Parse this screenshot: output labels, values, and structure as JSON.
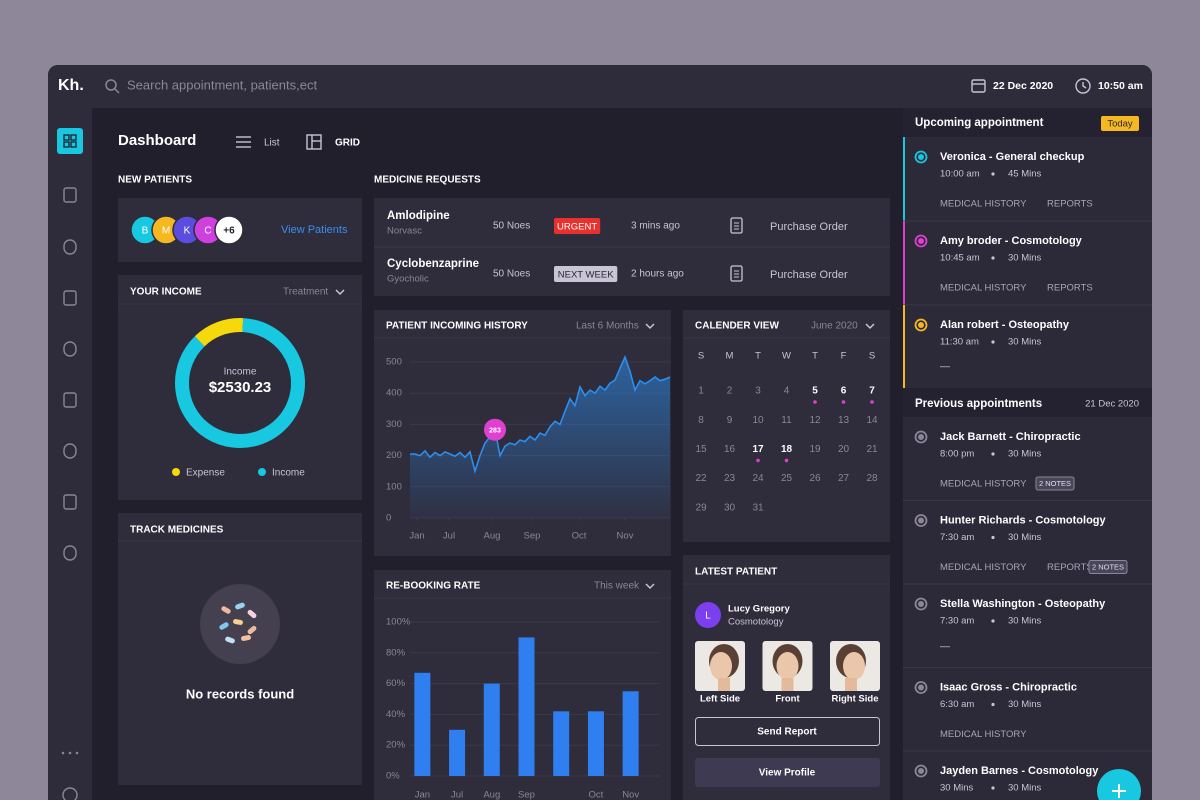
{
  "brand": "Kh.",
  "search_placeholder": "Search appointment, patients,ect",
  "date": "22 Dec 2020",
  "time": "10:50 am",
  "page_title": "Dashboard",
  "view_list": "List",
  "view_grid": "GRID",
  "new_patients": {
    "title": "NEW PATIENTS",
    "avatars": [
      "B",
      "M",
      "K",
      "C",
      "+6"
    ],
    "avatar_colors": [
      "#17c8e0",
      "#f5b820",
      "#5b4de0",
      "#d040e0",
      "#ffffff"
    ],
    "link": "View Patients"
  },
  "income": {
    "title": "YOUR INCOME",
    "filter": "Treatment",
    "center_label": "Income",
    "center_value": "$2530.23"
  },
  "track": {
    "title": "TRACK MEDICINES",
    "empty": "No records found"
  },
  "medicine": {
    "title": "MEDICINE REQUESTS",
    "rows": [
      {
        "name": "Amlodipine",
        "sub": "Norvasc",
        "qty": "50 Noes",
        "tag": "URGENT",
        "tag_color": "#e8302e",
        "time": "3 mins ago",
        "action": "Purchase Order"
      },
      {
        "name": "Cyclobenzaprine",
        "sub": "Gyocholic",
        "qty": "50 Noes",
        "tag": "NEXT WEEK",
        "tag_color": "#c9c4d6",
        "time": "2 hours ago",
        "action": "Purchase Order"
      }
    ]
  },
  "chart_data": [
    {
      "type": "pie",
      "categories": [
        "Expense",
        "Income"
      ],
      "values": [
        13,
        87
      ],
      "colors": [
        "#f5d90a",
        "#17c8e0"
      ]
    },
    {
      "type": "line",
      "title": "PATIENT INCOMING HISTORY",
      "filter": "Last 6 Months",
      "color": "#2a8ff0",
      "grid": true,
      "x": [
        0,
        1,
        2,
        3,
        4,
        5,
        6,
        7,
        8,
        9,
        10,
        11,
        12,
        13,
        14,
        15,
        16,
        17,
        18,
        19,
        20,
        21,
        22,
        23,
        24,
        25,
        26,
        27,
        28,
        29,
        30,
        31,
        32,
        33,
        34,
        35,
        36,
        37,
        38,
        39,
        40,
        41,
        42,
        43,
        44,
        45,
        46,
        47,
        48,
        49,
        50,
        51,
        52
      ],
      "values": [
        205,
        205,
        200,
        215,
        195,
        210,
        200,
        212,
        205,
        198,
        210,
        195,
        212,
        150,
        200,
        240,
        260,
        283,
        200,
        230,
        240,
        235,
        250,
        245,
        262,
        250,
        272,
        265,
        292,
        310,
        300,
        342,
        382,
        360,
        420,
        392,
        410,
        400,
        422,
        410,
        432,
        442,
        480,
        516,
        470,
        410,
        440,
        430,
        440,
        452,
        440,
        445,
        452
      ],
      "highlight_index": 17,
      "highlight_color": "#e040d0",
      "xlim": [
        0,
        52
      ],
      "xticks": [
        {
          "value": 1.4,
          "label": "Jan"
        },
        {
          "value": 7.8,
          "label": "Jul"
        },
        {
          "value": 16.4,
          "label": "Aug"
        },
        {
          "value": 24.4,
          "label": "Sep"
        },
        {
          "value": 33.8,
          "label": "Oct"
        },
        {
          "value": 43,
          "label": "Nov"
        }
      ],
      "ylim": [
        0,
        500
      ],
      "yticks": [
        0,
        100,
        200,
        300,
        400,
        500
      ]
    },
    {
      "type": "bar",
      "title": "RE-BOOKING RATE",
      "filter": "This week",
      "color": "#2f7ff0",
      "grid": true,
      "categories": [
        "Jan",
        "Jul",
        "Aug",
        "Sep",
        null,
        "Oct",
        "Nov"
      ],
      "values": [
        67,
        30,
        60,
        90,
        42,
        42,
        55
      ],
      "ylim": [
        0,
        100
      ],
      "yticks": [
        {
          "value": 0,
          "label": "0%"
        },
        {
          "value": 20,
          "label": "20%"
        },
        {
          "value": 40,
          "label": "40%"
        },
        {
          "value": 60,
          "label": "60%"
        },
        {
          "value": 80,
          "label": "80%"
        },
        {
          "value": 100,
          "label": "100%"
        }
      ]
    }
  ],
  "calendar": {
    "title": "CALENDER VIEW",
    "month": "June 2020",
    "weekdays": [
      "S",
      "M",
      "T",
      "W",
      "T",
      "F",
      "S"
    ],
    "days": [
      1,
      2,
      3,
      4,
      5,
      6,
      7,
      8,
      9,
      10,
      11,
      12,
      13,
      14,
      15,
      16,
      17,
      18,
      19,
      20,
      21,
      22,
      23,
      24,
      25,
      26,
      27,
      28,
      29,
      30,
      31
    ],
    "marked": [
      5,
      6,
      7,
      17,
      18
    ],
    "mark_color": "#e040d0"
  },
  "latest": {
    "title": "LATEST PATIENT",
    "initial": "L",
    "name": "Lucy Gregory",
    "sub": "Cosmotology",
    "photos": [
      "Left Side",
      "Front",
      "Right Side"
    ],
    "send": "Send Report",
    "view": "View Profile"
  },
  "upcoming": {
    "title": "Upcoming appointment",
    "badge": "Today",
    "items": [
      {
        "name": "Veronica - General checkup",
        "time": "10:00 am",
        "duration": "45 Mins",
        "links": [
          "MEDICAL HISTORY",
          "REPORTS"
        ],
        "color": "#17c8e0"
      },
      {
        "name": "Amy broder - Cosmotology",
        "time": "10:45 am",
        "duration": "30 Mins",
        "links": [
          "MEDICAL HISTORY",
          "REPORTS"
        ],
        "color": "#e040d0"
      },
      {
        "name": "Alan robert - Osteopathy",
        "time": "11:30 am",
        "duration": "30 Mins",
        "links": [],
        "extra": "—",
        "color": "#f5b820"
      }
    ]
  },
  "previous": {
    "title": "Previous appointments",
    "date": "21 Dec 2020",
    "items": [
      {
        "name": "Jack Barnett - Chiropractic",
        "time": "8:00 pm",
        "duration": "30 Mins",
        "links": [
          "MEDICAL HISTORY"
        ],
        "notes": "2 NOTES"
      },
      {
        "name": "Hunter Richards - Cosmotology",
        "time": "7:30 am",
        "duration": "30 Mins",
        "links": [
          "MEDICAL HISTORY",
          "REPORTS"
        ],
        "notes": "2 NOTES"
      },
      {
        "name": "Stella Washington - Osteopathy",
        "time": "7:30 am",
        "duration": "30 Mins",
        "links": [],
        "extra": "—"
      },
      {
        "name": "Isaac Gross - Chiropractic",
        "time": "6:30 am",
        "duration": "30 Mins",
        "links": [
          "MEDICAL HISTORY"
        ]
      },
      {
        "name": "Jayden Barnes - Cosmotology",
        "time": "30 Mins",
        "duration": "30 Mins",
        "links": []
      }
    ]
  }
}
